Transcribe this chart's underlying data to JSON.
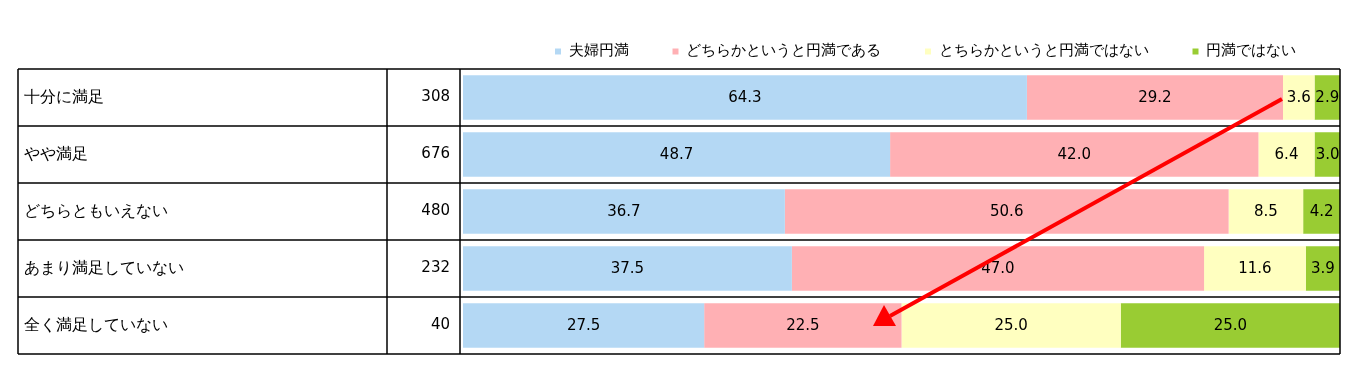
{
  "chart_data": {
    "type": "bar",
    "orientation": "horizontal",
    "stacked": true,
    "legend": "top right",
    "grid": false,
    "tick_labels": "y",
    "xlim": [
      0,
      100
    ],
    "categories": [
      "十分に満足",
      "やや満足",
      "どちらともいえない",
      "あまり満足していない",
      "全く満足していない"
    ],
    "series": [
      {
        "name": "夫婦円満",
        "color": "#b4d8f4",
        "values": [
          64.3,
          48.7,
          36.7,
          37.5,
          27.5
        ],
        "value_labels": [
          "64.3",
          "48.7",
          "36.7",
          "37.5",
          "27.5"
        ]
      },
      {
        "name": "どちらかというと円満である",
        "color": "#ffb0b4",
        "values": [
          29.2,
          42.0,
          50.6,
          47.0,
          22.5
        ],
        "value_labels": [
          "29.2",
          "42.0",
          "50.6",
          "47.0",
          "22.5"
        ]
      },
      {
        "name": "とちらかというと円満ではない",
        "color": "#ffffc0",
        "values": [
          3.6,
          6.4,
          8.5,
          11.6,
          25.0
        ],
        "value_labels": [
          "3.6",
          "6.4",
          "8.5",
          "11.6",
          "25.0"
        ]
      },
      {
        "name": "円満ではない",
        "color": "#99cc33",
        "values": [
          2.9,
          3.0,
          4.2,
          3.9,
          25.0
        ],
        "value_labels": [
          "2.9",
          "3.0",
          "4.2",
          "3.9",
          "25.0"
        ]
      }
    ],
    "annotations": [
      "308",
      "676",
      "480",
      "232",
      "40"
    ]
  }
}
